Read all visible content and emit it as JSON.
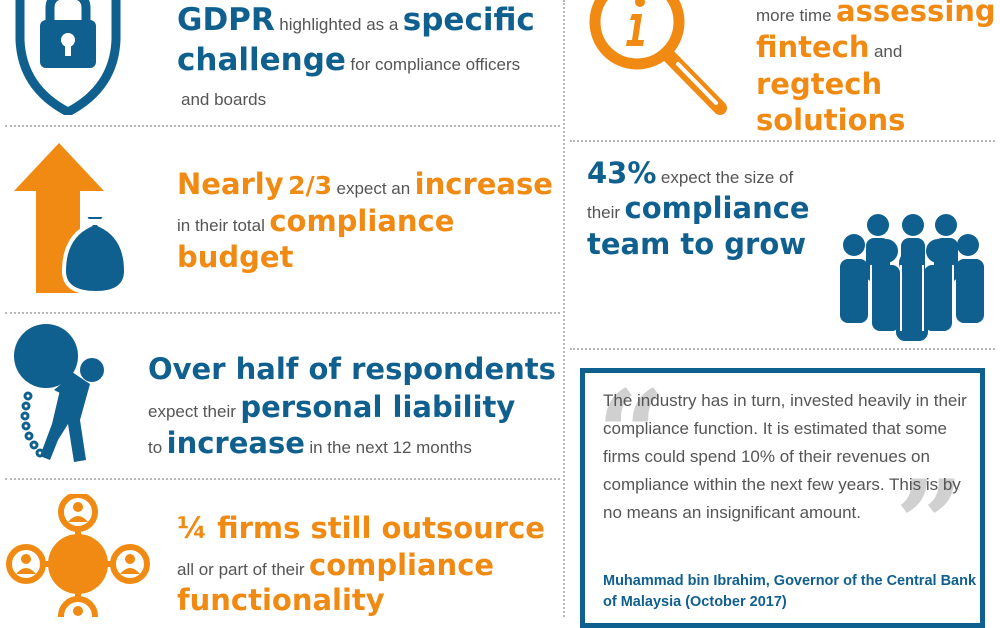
{
  "colors": {
    "blue": "#0f5f8f",
    "orange": "#f08a12",
    "text": "#555555"
  },
  "icons": [
    "lock-shield-icon",
    "magnifier-info-icon",
    "arrow-moneybag-icon",
    "people-group-icon",
    "person-ball-chain-icon",
    "network-people-icon"
  ],
  "gdpr": {
    "w1": "GDPR",
    "w2": "highlighted as a",
    "w3": "specific",
    "w4": "challenge",
    "w5": "for compliance officers",
    "w6": "and boards"
  },
  "fintech": {
    "w1": "more time",
    "w2": "assessing",
    "w3": "fintech",
    "w4": "and",
    "w5": "regtech",
    "w6": "solutions"
  },
  "budget": {
    "w1": "Nearly",
    "w2": "2/3",
    "w3": "expect an",
    "w4": "increase",
    "w5": "in their total",
    "w6": "compliance",
    "w7": "budget"
  },
  "team": {
    "w1": "43%",
    "w2": "expect the size of",
    "w3": "their",
    "w4": "compliance",
    "w5": "team to grow"
  },
  "liability": {
    "w1": "Over half of respondents",
    "w2": "expect their",
    "w3": "personal liability",
    "w4": "to",
    "w5": "increase",
    "w6": "in the next 12 months"
  },
  "outsource": {
    "w1": "¼ firms still outsource",
    "w2": "all or part of their",
    "w3": "compliance",
    "w4": "functionality"
  },
  "quote": {
    "text": "The industry has in turn, invested heavily in their compliance function. It is estimated that some firms could spend 10% of their revenues on compliance within the next few years. This is by no means an insignificant amount.",
    "attribution": "Muhammad bin Ibrahim, Governor of the Central Bank of Malaysia (October 2017)"
  }
}
